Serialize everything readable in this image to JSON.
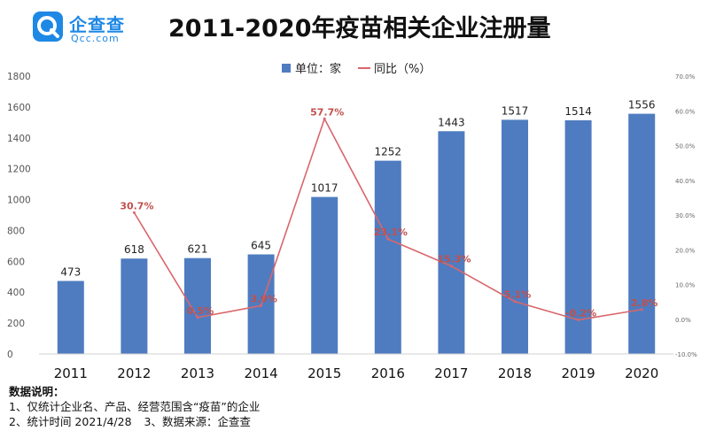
{
  "logo": {
    "cn": "企查查",
    "en": "Qcc.com"
  },
  "chart_data": {
    "type": "bar",
    "title": "2011-2020年疫苗相关企业注册量",
    "categories": [
      "2011",
      "2012",
      "2013",
      "2014",
      "2015",
      "2016",
      "2017",
      "2018",
      "2019",
      "2020"
    ],
    "series": [
      {
        "name": "单位：家",
        "type": "bar",
        "axis": "left",
        "color": "#4f7cc0",
        "values": [
          473,
          618,
          621,
          645,
          1017,
          1252,
          1443,
          1517,
          1514,
          1556
        ],
        "labels": [
          "473",
          "618",
          "621",
          "645",
          "1017",
          "1252",
          "1443",
          "1517",
          "1514",
          "1556"
        ]
      },
      {
        "name": "同比（%）",
        "type": "line",
        "axis": "right",
        "color": "#d9666b",
        "values": [
          null,
          30.7,
          0.5,
          3.9,
          57.7,
          23.1,
          15.3,
          5.1,
          -0.2,
          2.8
        ],
        "labels": [
          "",
          "30.7%",
          "0.5%",
          "3.9%",
          "57.7%",
          "23.1%",
          "15.3%",
          "5.1%",
          "-0.2%",
          "2.8%"
        ]
      }
    ],
    "y_left": {
      "min": 0,
      "max": 1800,
      "ticks": [
        "0",
        "200",
        "400",
        "600",
        "800",
        "1000",
        "1200",
        "1400",
        "1600",
        "1800"
      ]
    },
    "y_right": {
      "min": -10,
      "max": 70,
      "ticks": [
        "-10.0%",
        "0.0%",
        "10.0%",
        "20.0%",
        "30.0%",
        "40.0%",
        "50.0%",
        "60.0%",
        "70.0%"
      ]
    },
    "legend": {
      "position": "top-center"
    },
    "grid": false
  },
  "notes": {
    "heading": "数据说明：",
    "line1": "1、仅统计企业名、产品、经营范围含“疫苗”的企业",
    "line2a": "2、统计时间 2021/4/28",
    "line2b": "3、数据来源：企查查"
  }
}
